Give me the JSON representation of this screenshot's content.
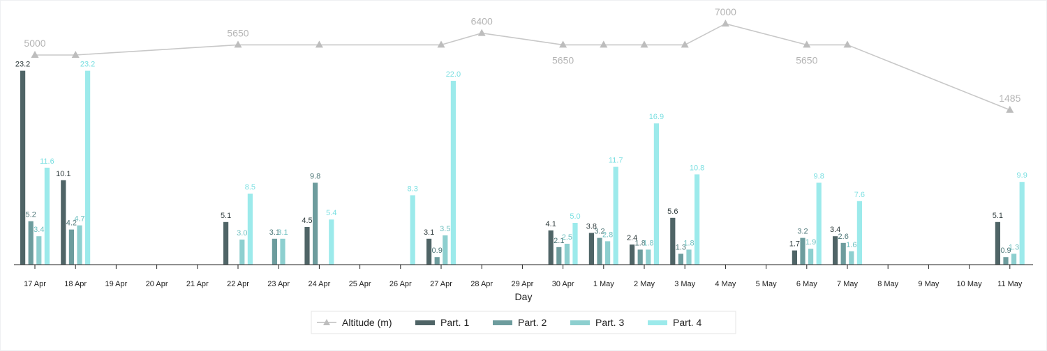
{
  "chart_data": {
    "type": "bar",
    "xlabel": "Day",
    "categories": [
      "17 Apr",
      "18 Apr",
      "19 Apr",
      "20 Apr",
      "21 Apr",
      "22 Apr",
      "23 Apr",
      "24 Apr",
      "25 Apr",
      "26 Apr",
      "27 Apr",
      "28 Apr",
      "29 Apr",
      "30 Apr",
      "1 May",
      "2 May",
      "3 May",
      "4 May",
      "5 May",
      "6 May",
      "7 May",
      "8 May",
      "9 May",
      "10 May",
      "11 May"
    ],
    "series": [
      {
        "name": "Part. 1",
        "color": "#4f6466",
        "values": [
          23.2,
          10.1,
          null,
          null,
          null,
          5.1,
          null,
          4.5,
          null,
          null,
          3.1,
          null,
          null,
          4.1,
          3.8,
          2.4,
          5.6,
          null,
          null,
          1.7,
          3.4,
          null,
          null,
          null,
          5.1
        ]
      },
      {
        "name": "Part. 2",
        "color": "#6d9c9d",
        "values": [
          5.2,
          4.2,
          null,
          null,
          null,
          null,
          3.1,
          9.8,
          null,
          null,
          0.9,
          null,
          null,
          2.1,
          3.2,
          1.8,
          1.3,
          null,
          null,
          3.2,
          2.6,
          null,
          null,
          null,
          0.9
        ]
      },
      {
        "name": "Part. 3",
        "color": "#8dcfcf",
        "values": [
          3.4,
          4.7,
          null,
          null,
          null,
          3.0,
          3.1,
          null,
          null,
          null,
          3.5,
          null,
          null,
          2.5,
          2.8,
          1.8,
          1.8,
          null,
          null,
          1.9,
          1.6,
          null,
          null,
          null,
          1.3
        ]
      },
      {
        "name": "Part. 4",
        "color": "#9ceaeb",
        "values": [
          11.6,
          23.2,
          null,
          null,
          null,
          8.5,
          null,
          5.4,
          null,
          8.3,
          22.0,
          null,
          null,
          5.0,
          11.7,
          16.9,
          10.8,
          null,
          null,
          9.8,
          7.6,
          null,
          null,
          null,
          9.9
        ]
      }
    ],
    "altitude": {
      "name": "Altitude (m)",
      "color": "#c8c8c8",
      "x": [
        "17 Apr",
        "18 Apr",
        "22 Apr",
        "24 Apr",
        "27 Apr",
        "28 Apr",
        "30 Apr",
        "1 May",
        "2 May",
        "3 May",
        "4 May",
        "6 May",
        "7 May",
        "11 May"
      ],
      "y": [
        5000,
        5000,
        5650,
        5650,
        5650,
        6400,
        5650,
        5650,
        5650,
        5650,
        7000,
        5650,
        5650,
        1485
      ],
      "labeled": {
        "17 Apr": 5000,
        "22 Apr": 5650,
        "28 Apr": 6400,
        "30 Apr": 5650,
        "4 May": 7000,
        "6 May": 5650,
        "11 May": 1485
      }
    },
    "legend_position": "bottom",
    "grid": false
  }
}
